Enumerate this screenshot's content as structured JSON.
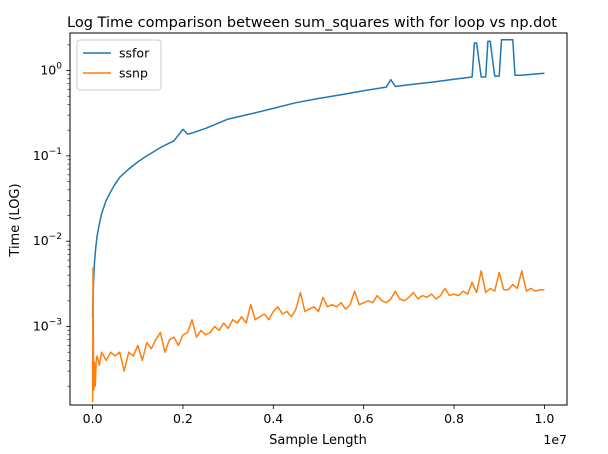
{
  "chart_data": {
    "type": "line",
    "title": "Log Time comparison between sum_squares with for loop vs np.dot",
    "xlabel": "Sample Length",
    "ylabel": "Time (LOG)",
    "x_offset_label": "1e7",
    "xlim": [
      -0.05,
      1.05
    ],
    "ylim_log10": [
      -3.92,
      0.44
    ],
    "yscale": "log",
    "grid": false,
    "legend_position": "top-left",
    "x_ticks": [
      {
        "value": 0.0,
        "label": "0.0"
      },
      {
        "value": 0.2,
        "label": "0.2"
      },
      {
        "value": 0.4,
        "label": "0.4"
      },
      {
        "value": 0.6,
        "label": "0.6"
      },
      {
        "value": 0.8,
        "label": "0.8"
      },
      {
        "value": 1.0,
        "label": "1.0"
      }
    ],
    "y_ticks": [
      {
        "value": 0.001,
        "base": "10",
        "exp": "−3"
      },
      {
        "value": 0.01,
        "base": "10",
        "exp": "−2"
      },
      {
        "value": 0.1,
        "base": "10",
        "exp": "−1"
      },
      {
        "value": 1,
        "base": "10",
        "exp": "0"
      }
    ],
    "series": [
      {
        "name": "ssfor",
        "color": "#1f77b4",
        "x": [
          0.0,
          0.002,
          0.004,
          0.007,
          0.01,
          0.015,
          0.02,
          0.03,
          0.04,
          0.05,
          0.06,
          0.08,
          0.1,
          0.12,
          0.15,
          0.18,
          0.19,
          0.2,
          0.21,
          0.22,
          0.25,
          0.3,
          0.35,
          0.4,
          0.45,
          0.5,
          0.55,
          0.6,
          0.65,
          0.66,
          0.67,
          0.7,
          0.75,
          0.8,
          0.84,
          0.845,
          0.85,
          0.86,
          0.87,
          0.875,
          0.88,
          0.89,
          0.9,
          0.905,
          0.91,
          0.92,
          0.93,
          0.935,
          0.94,
          0.95,
          0.97,
          1.0
        ],
        "y": [
          0.0013,
          0.0033,
          0.0055,
          0.0085,
          0.0115,
          0.016,
          0.021,
          0.03,
          0.038,
          0.047,
          0.056,
          0.07,
          0.085,
          0.1,
          0.125,
          0.15,
          0.175,
          0.205,
          0.18,
          0.185,
          0.21,
          0.27,
          0.31,
          0.36,
          0.42,
          0.47,
          0.52,
          0.58,
          0.64,
          0.78,
          0.65,
          0.68,
          0.73,
          0.79,
          0.84,
          2.1,
          2.1,
          0.84,
          0.84,
          2.2,
          2.2,
          0.86,
          0.86,
          2.3,
          2.3,
          2.3,
          2.3,
          0.88,
          0.88,
          0.88,
          0.9,
          0.93
        ]
      },
      {
        "name": "ssnp",
        "color": "#ff7f0e",
        "x": [
          0.0,
          0.001,
          0.002,
          0.003,
          0.004,
          0.006,
          0.008,
          0.01,
          0.015,
          0.02,
          0.03,
          0.04,
          0.05,
          0.06,
          0.07,
          0.08,
          0.09,
          0.1,
          0.11,
          0.12,
          0.13,
          0.14,
          0.15,
          0.16,
          0.17,
          0.18,
          0.19,
          0.2,
          0.21,
          0.22,
          0.23,
          0.24,
          0.25,
          0.26,
          0.27,
          0.28,
          0.29,
          0.3,
          0.31,
          0.32,
          0.33,
          0.34,
          0.35,
          0.36,
          0.37,
          0.38,
          0.39,
          0.4,
          0.41,
          0.42,
          0.43,
          0.44,
          0.45,
          0.46,
          0.47,
          0.48,
          0.49,
          0.5,
          0.51,
          0.52,
          0.53,
          0.54,
          0.55,
          0.56,
          0.57,
          0.58,
          0.59,
          0.6,
          0.61,
          0.62,
          0.63,
          0.64,
          0.65,
          0.66,
          0.67,
          0.68,
          0.69,
          0.7,
          0.71,
          0.72,
          0.73,
          0.74,
          0.75,
          0.76,
          0.77,
          0.78,
          0.79,
          0.8,
          0.81,
          0.82,
          0.83,
          0.84,
          0.85,
          0.86,
          0.87,
          0.88,
          0.89,
          0.9,
          0.91,
          0.92,
          0.93,
          0.94,
          0.95,
          0.96,
          0.97,
          0.98,
          0.99,
          1.0
        ],
        "y": [
          0.00013,
          0.0048,
          0.0003,
          0.00018,
          0.00038,
          0.0002,
          0.0004,
          0.00045,
          0.00035,
          0.0005,
          0.0004,
          0.0005,
          0.00045,
          0.0005,
          0.0003,
          0.0005,
          0.00045,
          0.0006,
          0.0004,
          0.00065,
          0.00055,
          0.0007,
          0.00085,
          0.0005,
          0.0007,
          0.00075,
          0.0006,
          0.0008,
          0.00085,
          0.0012,
          0.00075,
          0.0009,
          0.0008,
          0.00085,
          0.001,
          0.0009,
          0.0011,
          0.00095,
          0.0012,
          0.0011,
          0.0013,
          0.0011,
          0.0018,
          0.0012,
          0.0013,
          0.0014,
          0.0012,
          0.0015,
          0.0017,
          0.0014,
          0.0015,
          0.0013,
          0.0016,
          0.0025,
          0.0015,
          0.0016,
          0.0017,
          0.0015,
          0.0022,
          0.0017,
          0.0018,
          0.0017,
          0.0019,
          0.0016,
          0.0018,
          0.0026,
          0.0018,
          0.0019,
          0.002,
          0.0019,
          0.0023,
          0.002,
          0.0019,
          0.0021,
          0.0026,
          0.0021,
          0.002,
          0.0022,
          0.0025,
          0.0021,
          0.0023,
          0.0022,
          0.0024,
          0.0021,
          0.0023,
          0.0028,
          0.0023,
          0.0024,
          0.0023,
          0.0026,
          0.0024,
          0.0033,
          0.0025,
          0.0045,
          0.0025,
          0.0028,
          0.0026,
          0.0043,
          0.0027,
          0.0027,
          0.0031,
          0.0028,
          0.0045,
          0.0026,
          0.0028,
          0.0026,
          0.0027,
          0.0027
        ]
      }
    ]
  }
}
